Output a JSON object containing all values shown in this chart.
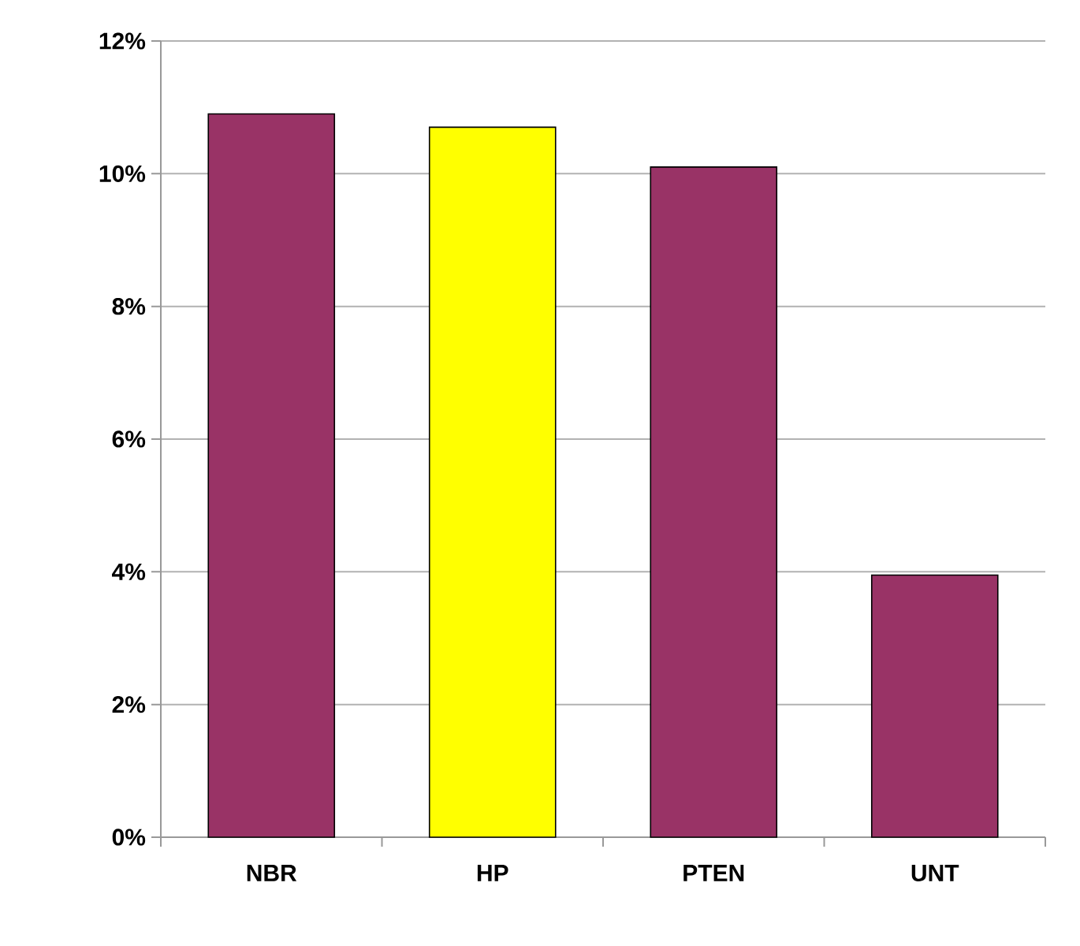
{
  "chart_data": {
    "type": "bar",
    "categories": [
      "NBR",
      "HP",
      "PTEN",
      "UNT"
    ],
    "values": [
      10.9,
      10.7,
      10.1,
      3.95
    ],
    "colors": [
      "#993366",
      "#ffff00",
      "#993366",
      "#993366"
    ],
    "ylim": [
      0,
      12
    ],
    "yticks": [
      {
        "value": 0,
        "label": "0%"
      },
      {
        "value": 2,
        "label": "2%"
      },
      {
        "value": 4,
        "label": "4%"
      },
      {
        "value": 6,
        "label": "6%"
      },
      {
        "value": 8,
        "label": "8%"
      },
      {
        "value": 10,
        "label": "10%"
      },
      {
        "value": 12,
        "label": "12%"
      }
    ],
    "grid": "y"
  }
}
